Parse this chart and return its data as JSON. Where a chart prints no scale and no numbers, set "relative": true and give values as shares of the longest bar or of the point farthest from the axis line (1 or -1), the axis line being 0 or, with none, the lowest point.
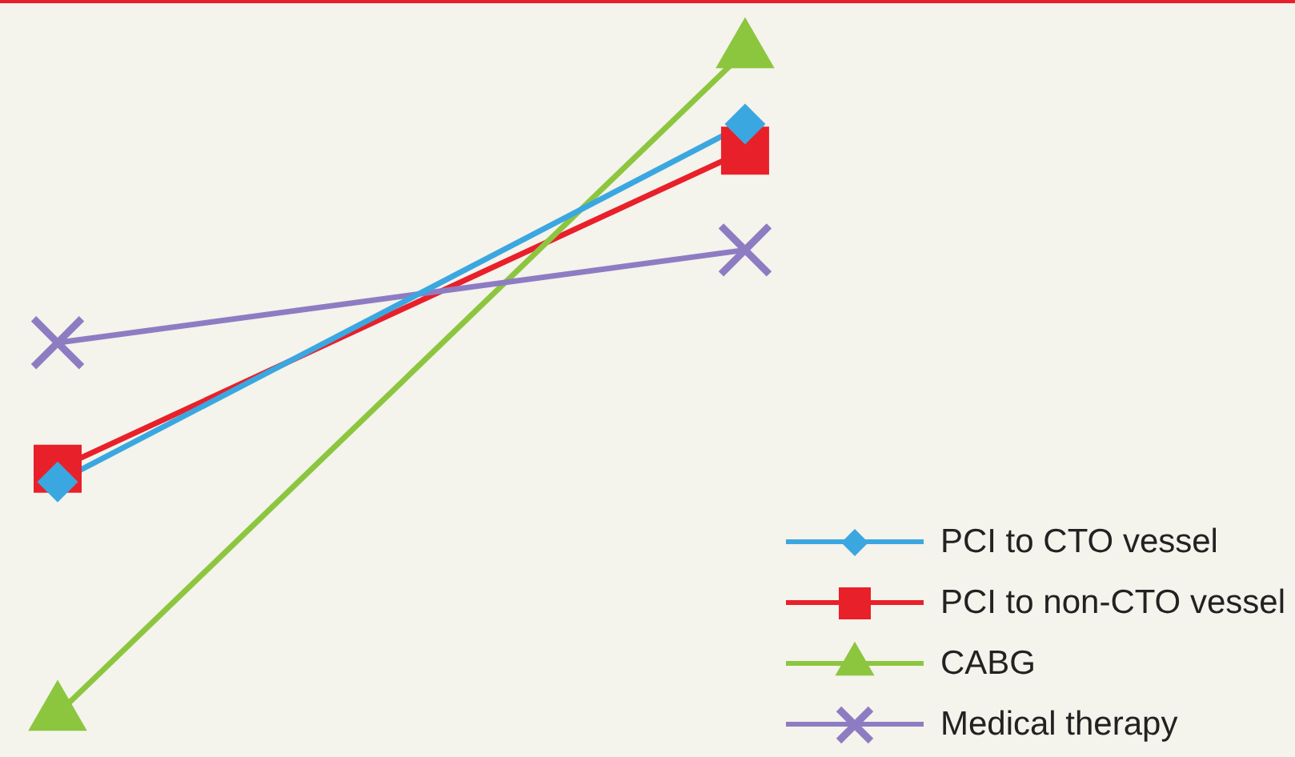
{
  "chart_data": {
    "type": "line",
    "relative": true,
    "categories": [
      null,
      null
    ],
    "legend": "bottom right",
    "series": [
      {
        "name": "PCI to CTO vessel",
        "color": "#3ba7e0",
        "marker": "diamond",
        "values": [
          0.35,
          0.89
        ]
      },
      {
        "name": "PCI to non-CTO vessel",
        "color": "#e8202a",
        "marker": "square",
        "values": [
          0.37,
          0.85
        ]
      },
      {
        "name": "CABG",
        "color": "#8cc63f",
        "marker": "triangle",
        "values": [
          0,
          1
        ]
      },
      {
        "name": "Medical therapy",
        "color": "#8e7cc3",
        "marker": "cross",
        "values": [
          0.56,
          0.7
        ]
      }
    ]
  }
}
